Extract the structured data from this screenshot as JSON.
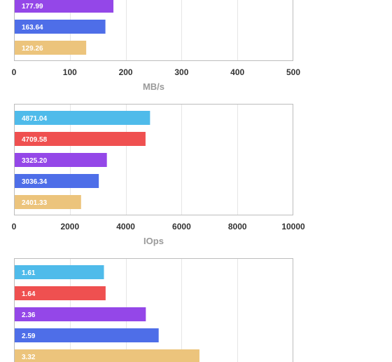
{
  "chart_data": [
    {
      "type": "bar",
      "orientation": "horizontal",
      "xlabel": "MB/s",
      "xlim": [
        0,
        500
      ],
      "xticks": [
        "0",
        "100",
        "200",
        "300",
        "400",
        "500"
      ],
      "grid": true,
      "bars": [
        {
          "value": 177.99,
          "label": "177.99",
          "color": "#9447e8"
        },
        {
          "value": 163.64,
          "label": "163.64",
          "color": "#4e6ee8"
        },
        {
          "value": 129.26,
          "label": "129.26",
          "color": "#ecc47c"
        }
      ]
    },
    {
      "type": "bar",
      "orientation": "horizontal",
      "xlabel": "IOps",
      "xlim": [
        0,
        10000
      ],
      "xticks": [
        "0",
        "2000",
        "4000",
        "6000",
        "8000",
        "10000"
      ],
      "grid": true,
      "bars": [
        {
          "value": 4871.04,
          "label": "4871.04",
          "color": "#4fbbea"
        },
        {
          "value": 4709.58,
          "label": "4709.58",
          "color": "#ef5050"
        },
        {
          "value": 3325.2,
          "label": "3325.20",
          "color": "#9447e8"
        },
        {
          "value": 3036.34,
          "label": "3036.34",
          "color": "#4e6ee8"
        },
        {
          "value": 2401.33,
          "label": "2401.33",
          "color": "#ecc47c"
        }
      ]
    },
    {
      "type": "bar",
      "orientation": "horizontal",
      "xlabel": "",
      "xlim": [
        0,
        5
      ],
      "xticks": [],
      "grid": true,
      "bars": [
        {
          "value": 1.61,
          "label": "1.61",
          "color": "#4fbbea"
        },
        {
          "value": 1.64,
          "label": "1.64",
          "color": "#ef5050"
        },
        {
          "value": 2.36,
          "label": "2.36",
          "color": "#9447e8"
        },
        {
          "value": 2.59,
          "label": "2.59",
          "color": "#4e6ee8"
        },
        {
          "value": 3.32,
          "label": "3.32",
          "color": "#ecc47c"
        }
      ]
    }
  ]
}
